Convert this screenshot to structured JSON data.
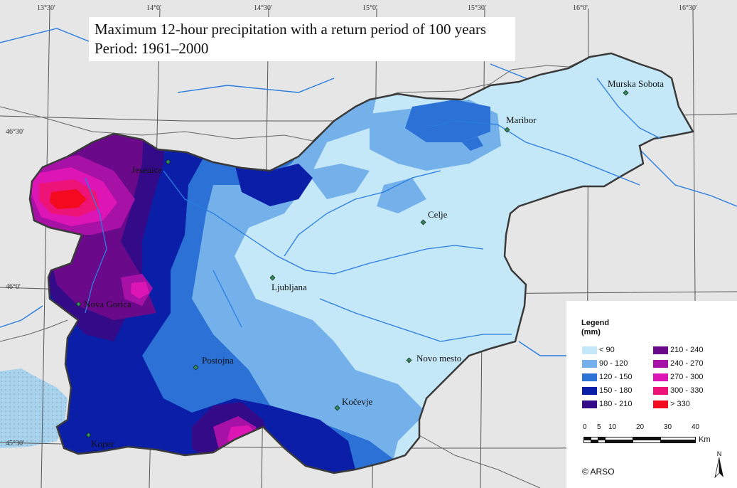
{
  "title": {
    "line1": "Maximum 12-hour precipitation with a return period of 100 years",
    "line2": "Period: 1961–2000"
  },
  "graticule": {
    "longitudes": [
      "13°30'",
      "14°0'",
      "14°30'",
      "15°0'",
      "15°30'",
      "16°0'",
      "16°30'"
    ],
    "latitudes": [
      "46°30'",
      "46°0'",
      "45°30'"
    ]
  },
  "cities": [
    {
      "name": "Jesenice"
    },
    {
      "name": "Maribor"
    },
    {
      "name": "Murska Sobota"
    },
    {
      "name": "Celje"
    },
    {
      "name": "Ljubljana"
    },
    {
      "name": "Nova Gorica"
    },
    {
      "name": "Postojna"
    },
    {
      "name": "Novo mesto"
    },
    {
      "name": "Kočevje"
    },
    {
      "name": "Koper"
    }
  ],
  "legend": {
    "title_line1": "Legend",
    "title_line2": "(mm)",
    "classes": [
      {
        "label": "< 90",
        "color": "#c4e8f8"
      },
      {
        "label": "90 - 120",
        "color": "#74b1ea"
      },
      {
        "label": "120 - 150",
        "color": "#2b71d6"
      },
      {
        "label": "150 - 180",
        "color": "#0b1ea8"
      },
      {
        "label": "180 - 210",
        "color": "#330a88"
      },
      {
        "label": "210 - 240",
        "color": "#6a0a8a"
      },
      {
        "label": "240 - 270",
        "color": "#a811a6"
      },
      {
        "label": "270 - 300",
        "color": "#dd15b4"
      },
      {
        "label": "300 - 330",
        "color": "#ee1477"
      },
      {
        "label": "> 330",
        "color": "#f40a1e"
      }
    ]
  },
  "scale": {
    "ticks": [
      "0",
      "5",
      "10",
      "20",
      "30",
      "40"
    ],
    "unit": "Km"
  },
  "north_label": "N",
  "copyright": "© ARSO",
  "colors": {
    "background": "#e6e6e6",
    "sea": "#a9d3ed",
    "river": "#2a7de0",
    "border": "#3a3a3a",
    "graticule": "#555555",
    "city_marker": "#2e8b57"
  }
}
